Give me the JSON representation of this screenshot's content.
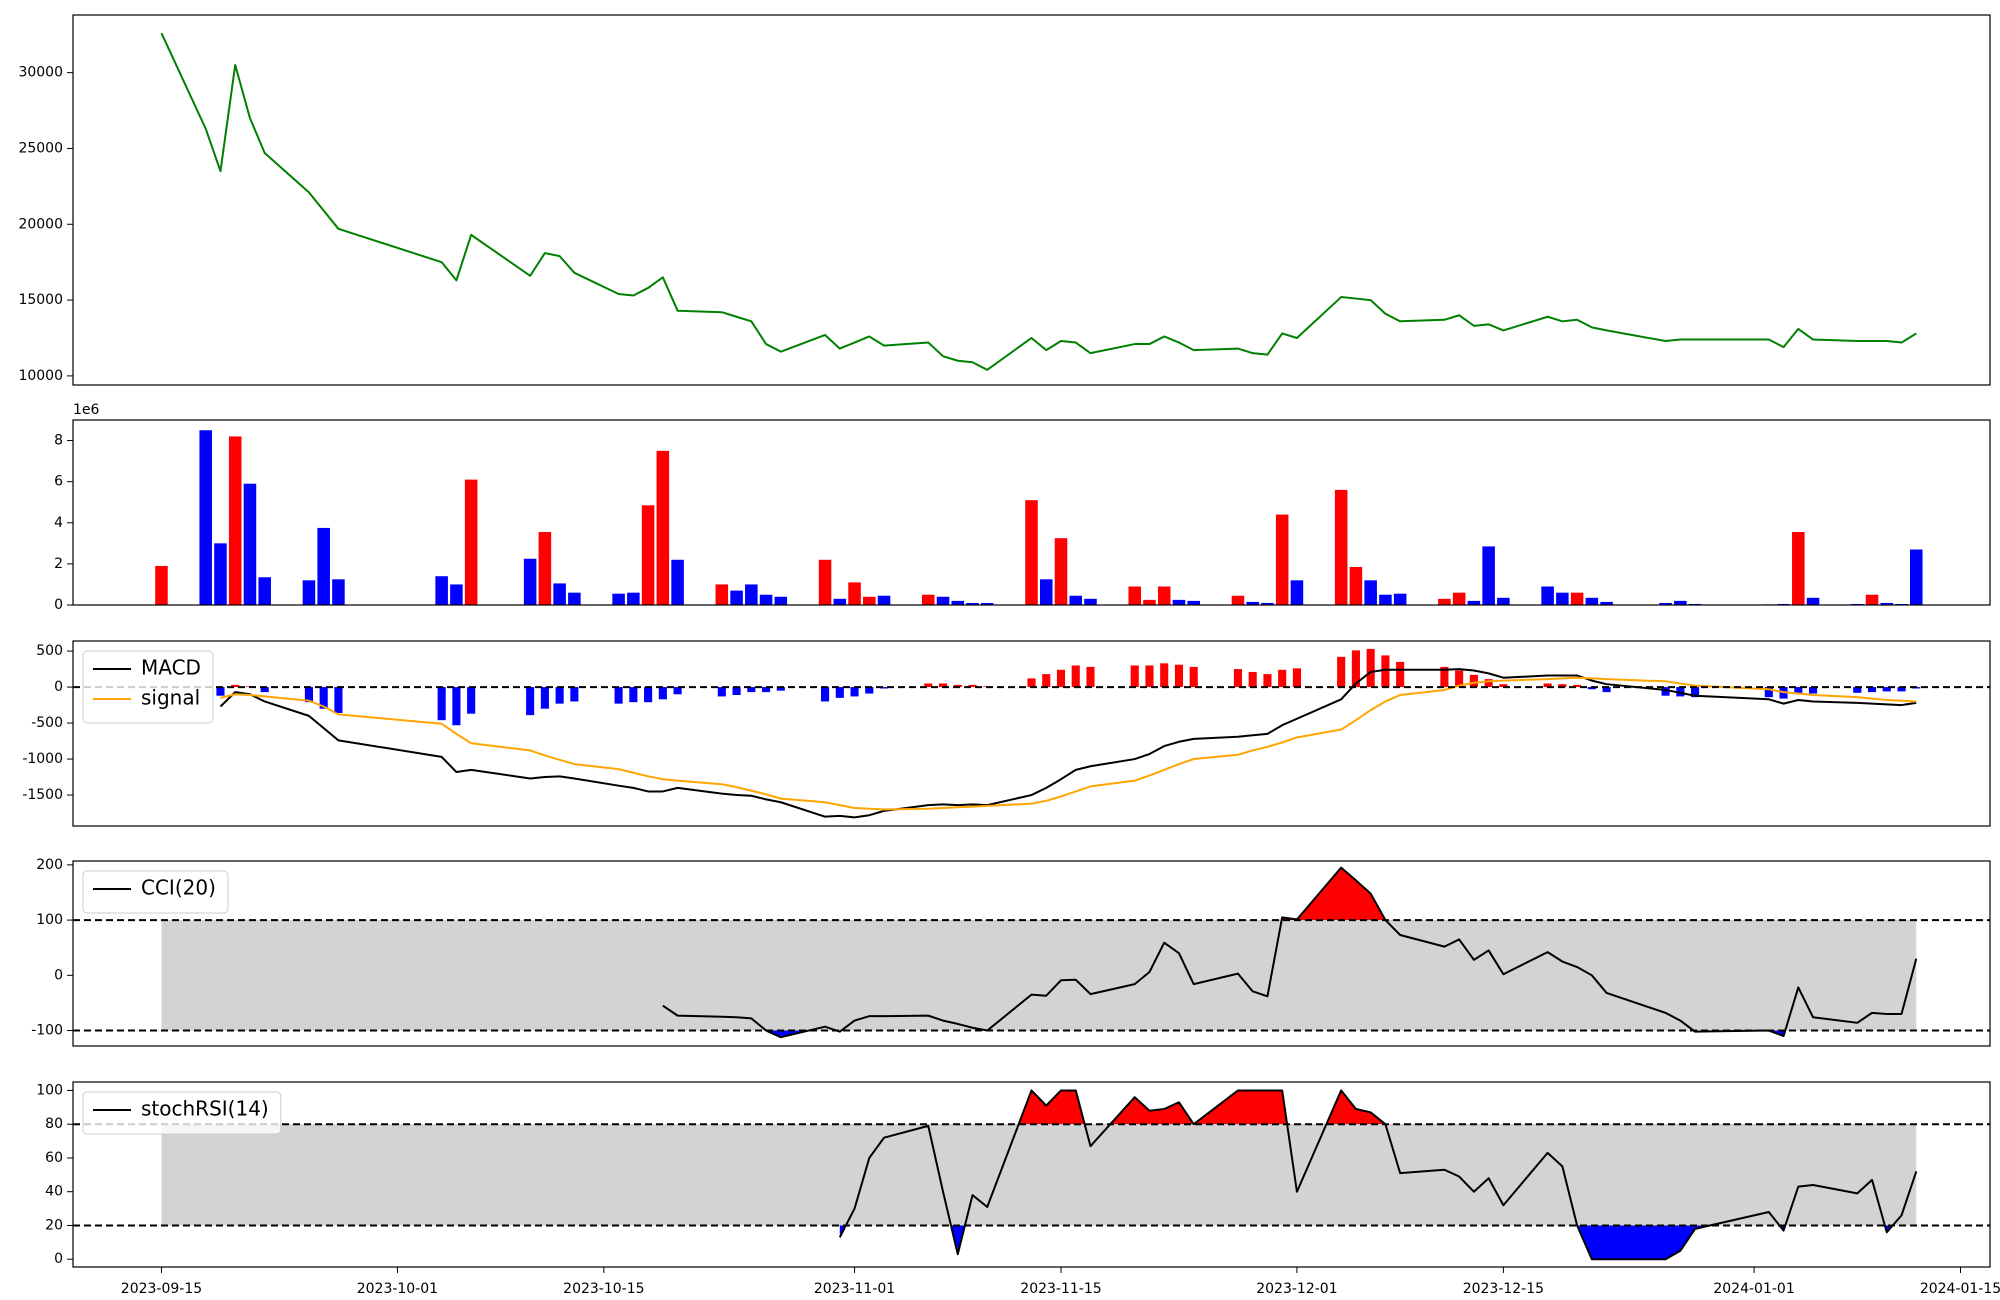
{
  "chart_data": [
    {
      "type": "line",
      "x": [
        "2023-09-15",
        "2023-09-18",
        "2023-09-19",
        "2023-09-20",
        "2023-09-21",
        "2023-09-22",
        "2023-09-25",
        "2023-09-26",
        "2023-09-27",
        "2023-10-04",
        "2023-10-05",
        "2023-10-06",
        "2023-10-10",
        "2023-10-11",
        "2023-10-12",
        "2023-10-13",
        "2023-10-16",
        "2023-10-17",
        "2023-10-18",
        "2023-10-19",
        "2023-10-20",
        "2023-10-23",
        "2023-10-24",
        "2023-10-25",
        "2023-10-26",
        "2023-10-27",
        "2023-10-30",
        "2023-10-31",
        "2023-11-01",
        "2023-11-02",
        "2023-11-03",
        "2023-11-06",
        "2023-11-07",
        "2023-11-08",
        "2023-11-09",
        "2023-11-10",
        "2023-11-13",
        "2023-11-14",
        "2023-11-15",
        "2023-11-16",
        "2023-11-17",
        "2023-11-20",
        "2023-11-21",
        "2023-11-22",
        "2023-11-23",
        "2023-11-24",
        "2023-11-27",
        "2023-11-28",
        "2023-11-29",
        "2023-11-30",
        "2023-12-01",
        "2023-12-04",
        "2023-12-05",
        "2023-12-06",
        "2023-12-07",
        "2023-12-08",
        "2023-12-11",
        "2023-12-12",
        "2023-12-13",
        "2023-12-14",
        "2023-12-15",
        "2023-12-18",
        "2023-12-19",
        "2023-12-20",
        "2023-12-21",
        "2023-12-22",
        "2023-12-26",
        "2023-12-27",
        "2023-12-28",
        "2024-01-02",
        "2024-01-03",
        "2024-01-04",
        "2024-01-05",
        "2024-01-08",
        "2024-01-09",
        "2024-01-10",
        "2024-01-11",
        "2024-01-12"
      ],
      "xlim": [
        "2023-09-09",
        "2024-01-17"
      ],
      "ylim": [
        9400,
        33800
      ],
      "yticks": [
        10000,
        15000,
        20000,
        25000,
        30000
      ],
      "series": [
        {
          "color": "green",
          "values": [
            32600,
            26300,
            23500,
            30500,
            27000,
            24700,
            22100,
            20900,
            19700,
            17500,
            16300,
            19300,
            16600,
            18100,
            17900,
            16800,
            15400,
            15300,
            15800,
            16500,
            14300,
            14200,
            13900,
            13600,
            12100,
            11600,
            12700,
            11800,
            12200,
            12600,
            12000,
            12200,
            11300,
            11000,
            10900,
            10400,
            12500,
            11700,
            12300,
            12200,
            11500,
            12100,
            12100,
            12600,
            12200,
            11700,
            11800,
            11500,
            11400,
            12800,
            12500,
            15200,
            15100,
            15000,
            14100,
            13600,
            13700,
            14000,
            13300,
            13400,
            13000,
            13900,
            13600,
            13700,
            13200,
            13000,
            12300,
            12400,
            12400,
            12400,
            11900,
            13100,
            12400,
            12300,
            12300,
            12300,
            12200,
            12800
          ]
        }
      ]
    },
    {
      "type": "bar",
      "offset_label": "1e6",
      "ylim": [
        0,
        9000000
      ],
      "yticks": [
        0,
        {
          "value": 2000000,
          "label": "2"
        },
        {
          "value": 4000000,
          "label": "4"
        },
        {
          "value": 6000000,
          "label": "6"
        },
        {
          "value": 8000000,
          "label": "8"
        }
      ],
      "values": [
        1900000,
        8500000,
        3000000,
        8200000,
        5900000,
        1350000,
        1200000,
        3750000,
        1250000,
        1400000,
        1000000,
        6100000,
        2250000,
        3550000,
        1050000,
        600000,
        550000,
        600000,
        4850000,
        7500000,
        2200000,
        1000000,
        700000,
        1000000,
        500000,
        400000,
        2200000,
        300000,
        1100000,
        400000,
        450000,
        500000,
        400000,
        200000,
        100000,
        100000,
        5100000,
        1250000,
        3250000,
        450000,
        300000,
        900000,
        250000,
        900000,
        250000,
        200000,
        450000,
        150000,
        100000,
        4400000,
        1200000,
        5600000,
        1850000,
        1200000,
        500000,
        550000,
        300000,
        600000,
        200000,
        2850000,
        350000,
        900000,
        600000,
        600000,
        350000,
        150000,
        100000,
        200000,
        50000,
        30000,
        50000,
        3550000,
        350000,
        50000,
        500000,
        100000,
        50000,
        2700000
      ],
      "colors": [
        "red",
        "blue",
        "blue",
        "red",
        "blue",
        "blue",
        "blue",
        "blue",
        "blue",
        "blue",
        "blue",
        "red",
        "blue",
        "red",
        "blue",
        "blue",
        "blue",
        "blue",
        "red",
        "red",
        "blue",
        "red",
        "blue",
        "blue",
        "blue",
        "blue",
        "red",
        "blue",
        "red",
        "red",
        "blue",
        "red",
        "blue",
        "blue",
        "blue",
        "blue",
        "red",
        "blue",
        "red",
        "blue",
        "blue",
        "red",
        "red",
        "red",
        "blue",
        "blue",
        "red",
        "blue",
        "blue",
        "red",
        "blue",
        "red",
        "red",
        "blue",
        "blue",
        "blue",
        "red",
        "red",
        "blue",
        "blue",
        "blue",
        "blue",
        "blue",
        "red",
        "blue",
        "blue",
        "blue",
        "blue",
        "blue",
        "blue",
        "blue",
        "red",
        "blue",
        "blue",
        "red",
        "blue",
        "blue",
        "blue"
      ]
    },
    {
      "type": "line",
      "ylim": [
        -1930,
        640
      ],
      "yticks": [
        -1500,
        -1000,
        -500,
        0,
        500
      ],
      "hline": 0,
      "legend": "upper left",
      "series": [
        {
          "name": "MACD",
          "color": "black",
          "values": [
            null,
            null,
            -270,
            -70,
            -100,
            -200,
            -400,
            -570,
            -740,
            -970,
            -1180,
            -1150,
            -1270,
            -1250,
            -1240,
            -1270,
            -1370,
            -1400,
            -1450,
            -1450,
            -1400,
            -1480,
            -1500,
            -1510,
            -1560,
            -1600,
            -1800,
            -1790,
            -1810,
            -1780,
            -1720,
            -1640,
            -1630,
            -1640,
            -1630,
            -1640,
            -1500,
            -1400,
            -1280,
            -1150,
            -1100,
            -1000,
            -930,
            -820,
            -760,
            -720,
            -690,
            -670,
            -650,
            -530,
            -440,
            -170,
            50,
            210,
            240,
            240,
            240,
            250,
            230,
            190,
            130,
            160,
            160,
            160,
            90,
            40,
            -40,
            -80,
            -120,
            -170,
            -230,
            -180,
            -200,
            -220,
            -230,
            -240,
            -250,
            -220
          ]
        },
        {
          "name": "signal",
          "color": "orange",
          "values": [
            null,
            null,
            -150,
            -100,
            -110,
            -130,
            -190,
            -270,
            -380,
            -510,
            -650,
            -780,
            -880,
            -950,
            -1010,
            -1070,
            -1140,
            -1190,
            -1240,
            -1280,
            -1300,
            -1350,
            -1390,
            -1440,
            -1490,
            -1550,
            -1600,
            -1640,
            -1680,
            -1690,
            -1700,
            -1690,
            -1680,
            -1670,
            -1660,
            -1650,
            -1620,
            -1580,
            -1520,
            -1450,
            -1380,
            -1300,
            -1230,
            -1150,
            -1070,
            -1000,
            -940,
            -880,
            -830,
            -770,
            -700,
            -590,
            -460,
            -320,
            -200,
            -110,
            -40,
            20,
            60,
            80,
            90,
            110,
            120,
            130,
            120,
            110,
            80,
            50,
            20,
            -30,
            -70,
            -90,
            -110,
            -140,
            -160,
            -180,
            -190,
            -200
          ]
        }
      ],
      "histogram": {
        "positive_color": "red",
        "negative_color": "blue",
        "values": [
          null,
          null,
          -120,
          30,
          10,
          -70,
          -210,
          -300,
          -360,
          -460,
          -530,
          -370,
          -390,
          -300,
          -230,
          -200,
          -230,
          -210,
          -210,
          -170,
          -100,
          -130,
          -110,
          -70,
          -70,
          -50,
          -200,
          -150,
          -130,
          -90,
          -20,
          50,
          50,
          30,
          30,
          10,
          120,
          180,
          240,
          300,
          280,
          300,
          300,
          330,
          310,
          280,
          250,
          210,
          180,
          240,
          260,
          420,
          510,
          530,
          440,
          350,
          280,
          230,
          170,
          110,
          40,
          50,
          40,
          30,
          -30,
          -70,
          -120,
          -130,
          -140,
          -140,
          -160,
          -90,
          -90,
          -80,
          -70,
          -60,
          -60,
          -20
        ]
      }
    },
    {
      "type": "line",
      "ylim": [
        -128,
        207
      ],
      "yticks": [
        -100,
        0,
        100,
        200
      ],
      "legend": "upper left",
      "band": [
        -100,
        100
      ],
      "band_color": "lightgray",
      "over_color": "red",
      "under_color": "blue",
      "series": [
        {
          "name": "CCI(20)",
          "color": "black",
          "values": [
            null,
            null,
            null,
            null,
            null,
            null,
            null,
            null,
            null,
            null,
            null,
            null,
            null,
            null,
            null,
            null,
            null,
            null,
            null,
            -55,
            -73,
            -75,
            -76,
            -78,
            -100,
            -112,
            -93,
            -102,
            -82,
            -74,
            -74,
            -73,
            -82,
            -88,
            -95,
            -100,
            -35,
            -37,
            -9,
            -8,
            -34,
            -16,
            6,
            59,
            40,
            -16,
            3,
            -29,
            -38,
            105,
            101,
            195,
            172,
            148,
            100,
            73,
            52,
            65,
            28,
            45,
            2,
            42,
            25,
            15,
            0,
            -32,
            -68,
            -82,
            -102,
            -100,
            -110,
            -22,
            -76,
            -86,
            -68,
            -70,
            -70,
            30
          ]
        }
      ]
    },
    {
      "type": "line",
      "ylim": [
        -4.6,
        105
      ],
      "yticks": [
        0,
        20,
        40,
        60,
        80,
        100
      ],
      "legend": "upper left",
      "band": [
        20,
        80
      ],
      "band_color": "lightgray",
      "over_color": "red",
      "under_color": "blue",
      "xticks": [
        "2023-09-15",
        "2023-10-01",
        "2023-10-15",
        "2023-11-01",
        "2023-11-15",
        "2023-12-01",
        "2023-12-15",
        "2024-01-01",
        "2024-01-15"
      ],
      "series": [
        {
          "name": "stochRSI(14)",
          "color": "black",
          "values": [
            null,
            null,
            null,
            null,
            null,
            null,
            null,
            null,
            null,
            null,
            null,
            null,
            null,
            null,
            null,
            null,
            null,
            null,
            null,
            null,
            null,
            null,
            null,
            null,
            null,
            null,
            null,
            13,
            30,
            60,
            72,
            79,
            40,
            3,
            38,
            31,
            100,
            91,
            100,
            100,
            67,
            96,
            88,
            89,
            93,
            80,
            100,
            100,
            100,
            100,
            40,
            100,
            89,
            87,
            80,
            51,
            53,
            49,
            40,
            48,
            32,
            63,
            55,
            20,
            0,
            0,
            0,
            5,
            18,
            28,
            17,
            43,
            44,
            39,
            47,
            16,
            26,
            52
          ]
        }
      ]
    }
  ]
}
